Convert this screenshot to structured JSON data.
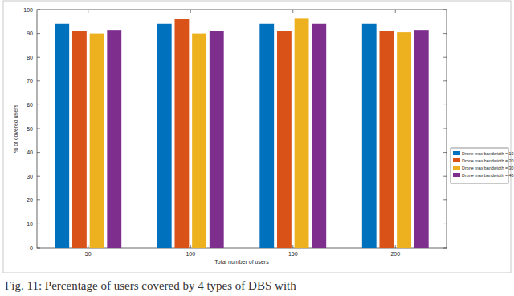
{
  "chart_data": {
    "type": "bar",
    "caption": "Fig. 11: Percentage of users covered by 4 types of DBS with",
    "x_label": "Total number of users",
    "y_label": "% of covered users",
    "categories": [
      50,
      100,
      150,
      200
    ],
    "series": [
      {
        "name": "Drone max bandwidth = 10",
        "color": "#0072bd",
        "values": [
          94,
          94,
          94,
          94
        ]
      },
      {
        "name": "Drone max bandwidth = 20",
        "color": "#d95319",
        "values": [
          91,
          96,
          91,
          91
        ]
      },
      {
        "name": "Drone max bandwidth = 30",
        "color": "#edb120",
        "values": [
          90,
          90,
          96.5,
          90.5
        ]
      },
      {
        "name": "Drone max bandwidth = 40",
        "color": "#7e2f8e",
        "values": [
          91.5,
          91,
          94,
          91.5
        ]
      }
    ],
    "ylim": [
      0,
      100
    ],
    "yticks": [
      0,
      10,
      20,
      30,
      40,
      50,
      60,
      70,
      80,
      90,
      100
    ],
    "grid": false,
    "legend": "right"
  }
}
